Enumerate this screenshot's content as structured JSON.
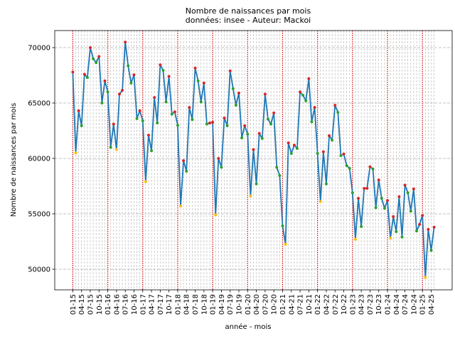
{
  "chart_data": {
    "type": "line",
    "title": "Nombre de naissances par mois",
    "subtitle": " données: insee - Auteur: Mackoi",
    "x_label": "année - mois",
    "y_label": "Nombre de naissances par mois",
    "xtick_labels": [
      "01-15",
      "04-15",
      "07-15",
      "10-15",
      "01-16",
      "04-16",
      "07-16",
      "10-16",
      "01-17",
      "04-17",
      "07-17",
      "10-17",
      "01-18",
      "04-18",
      "07-18",
      "10-18",
      "01-19",
      "04-19",
      "07-19",
      "10-19",
      "01-20",
      "04-20",
      "07-20",
      "10-20",
      "01-21",
      "04-21",
      "07-21",
      "10-21",
      "01-22",
      "04-22",
      "07-22",
      "10-22",
      "01-23",
      "04-23",
      "07-23",
      "10-23",
      "01-24",
      "04-24",
      "07-24",
      "10-24",
      "01-25",
      "04-25"
    ],
    "series": [
      {
        "name": "naissances",
        "color": "#1f77b4",
        "values": [
          67800,
          60500,
          64300,
          62950,
          67600,
          67300,
          70000,
          69000,
          68650,
          69200,
          65000,
          67000,
          66000,
          61000,
          63100,
          60800,
          65800,
          66150,
          70500,
          68350,
          66800,
          67550,
          63600,
          64300,
          63400,
          57900,
          62100,
          60700,
          65500,
          63200,
          68450,
          67950,
          65100,
          67400,
          64000,
          64200,
          63000,
          55700,
          59800,
          58850,
          64600,
          63500,
          68150,
          67000,
          65100,
          66800,
          63100,
          63200,
          63250,
          54900,
          60000,
          59200,
          63650,
          62950,
          67900,
          66300,
          64800,
          65900,
          61850,
          62950,
          62200,
          56600,
          60800,
          57700,
          62250,
          61800,
          65800,
          63550,
          63100,
          64100,
          59200,
          58450,
          53900,
          52250,
          61400,
          60450,
          61200,
          60900,
          66000,
          65700,
          65200,
          67200,
          63300,
          64600,
          60450,
          56100,
          60600,
          57700,
          62050,
          61650,
          64800,
          64150,
          60250,
          60400,
          59350,
          59100,
          56900,
          52700,
          56400,
          53850,
          57300,
          57300,
          59250,
          59050,
          55550,
          58050,
          56400,
          55500,
          56200,
          52800,
          54750,
          53400,
          56550,
          52900,
          57600,
          56900,
          55250,
          57250,
          53450,
          54050,
          54850,
          49250,
          53600,
          51700,
          53800
        ]
      }
    ],
    "marker_colors": {
      "up": "#d62728",
      "down": "#2ca02c",
      "year_min": "#ffbf00"
    },
    "ylim": [
      48140,
      71540
    ],
    "yticks": [
      50000,
      55000,
      60000,
      65000,
      70000
    ],
    "grid": true,
    "year_lines_color": "#d00000"
  }
}
